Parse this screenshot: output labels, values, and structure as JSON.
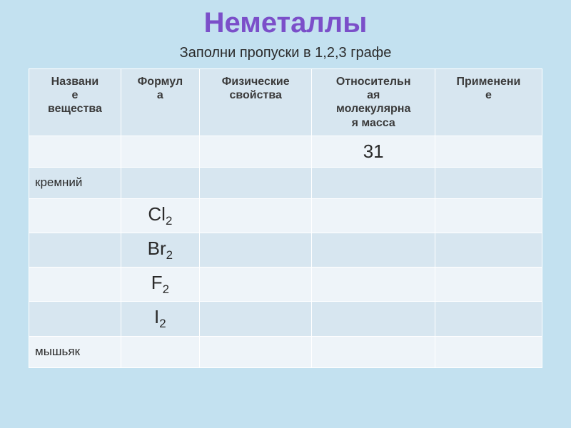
{
  "page": {
    "title": "Неметаллы",
    "subtitle": "Заполни пропуски в 1,2,3 графе",
    "background_color": "#c3e1f0",
    "title_color": "#7b4fc9",
    "title_fontsize": 40,
    "subtitle_fontsize": 20
  },
  "table": {
    "columns": [
      {
        "label": "Названи\nе\nвещества",
        "width": 0.18
      },
      {
        "label": "Формул\nа",
        "width": 0.14
      },
      {
        "label": "Физические\nсвойства",
        "width": 0.22
      },
      {
        "label": "Относительн\nая\nмолекулярна\nя масса",
        "width": 0.24
      },
      {
        "label": "Применени\nе",
        "width": 0.22
      }
    ],
    "header_bg": "#d7e6f0",
    "row_odd_bg": "#eef4f9",
    "row_even_bg": "#d7e6f0",
    "border_color": "#ffffff",
    "rows": [
      {
        "name": "",
        "formula": "",
        "sub": "",
        "props": "",
        "mass": "31",
        "use": ""
      },
      {
        "name": "кремний",
        "formula": "",
        "sub": "",
        "props": "",
        "mass": "",
        "use": ""
      },
      {
        "name": "",
        "formula": "Cl",
        "sub": "2",
        "props": "",
        "mass": "",
        "use": ""
      },
      {
        "name": "",
        "formula": "Br",
        "sub": "2",
        "props": "",
        "mass": "",
        "use": ""
      },
      {
        "name": "",
        "formula": "F",
        "sub": "2",
        "props": "",
        "mass": "",
        "use": ""
      },
      {
        "name": "",
        "formula": "I",
        "sub": "2",
        "props": "",
        "mass": "",
        "use": ""
      },
      {
        "name": "мышьяк",
        "formula": "",
        "sub": "",
        "props": "",
        "mass": "",
        "use": ""
      }
    ]
  }
}
